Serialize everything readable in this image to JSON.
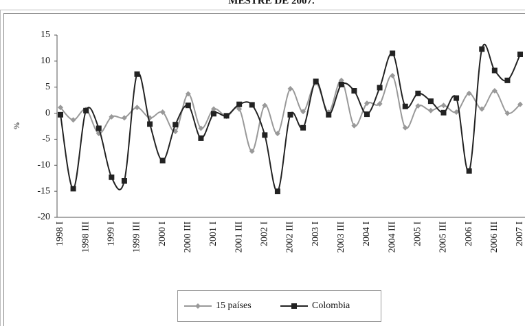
{
  "chart_data": {
    "type": "line",
    "title": "MESTRE DE 2007.",
    "y_label": "%",
    "categories": [
      "1998 I",
      null,
      "1998 III",
      null,
      "1999 I",
      null,
      "1999 III",
      null,
      "2000 I",
      null,
      "2000 III",
      null,
      "2001 I",
      null,
      "2001 III",
      null,
      "2002 I",
      null,
      "2002 III",
      null,
      "2003 I",
      null,
      "2003 III",
      null,
      "2004 I",
      null,
      "2004 III",
      null,
      "2005 I",
      null,
      "2005 III",
      null,
      "2006 I",
      null,
      "2006 III",
      null,
      "2007 I"
    ],
    "series": [
      {
        "name": "15 países",
        "color": "#999999",
        "marker": "diamond",
        "values": [
          1.1,
          -1.3,
          0.7,
          -3.9,
          -0.7,
          -0.9,
          1.1,
          -0.9,
          0.2,
          -3.5,
          3.7,
          -2.9,
          0.8,
          -0.6,
          0.8,
          -7.3,
          1.5,
          -3.9,
          4.7,
          0.3,
          5.8,
          0.2,
          6.3,
          -2.4,
          1.9,
          1.8,
          7.2,
          -2.8,
          1.4,
          0.5,
          1.5,
          0.2,
          3.8,
          0.8,
          4.3,
          0,
          1.7
        ]
      },
      {
        "name": "Colombia",
        "color": "#222222",
        "marker": "square",
        "values": [
          -0.3,
          -14.5,
          0.5,
          -2.9,
          -12.3,
          -13,
          7.5,
          -2.1,
          -9.1,
          -2.2,
          1.5,
          -4.8,
          -0.1,
          -0.5,
          1.7,
          1.6,
          -4.2,
          -15,
          -0.3,
          -2.8,
          6.1,
          -0.3,
          5.5,
          4.3,
          -0.2,
          4.9,
          11.5,
          1.3,
          3.8,
          2.3,
          0.1,
          2.9,
          -11.1,
          12.3,
          8.2,
          6.3,
          11.3
        ]
      }
    ],
    "ylim": [
      -20,
      15
    ],
    "yticks": [
      -20,
      -15,
      -10,
      -5,
      0,
      5,
      10,
      15
    ],
    "grid": false,
    "smooth": true,
    "legend": "bottom"
  }
}
